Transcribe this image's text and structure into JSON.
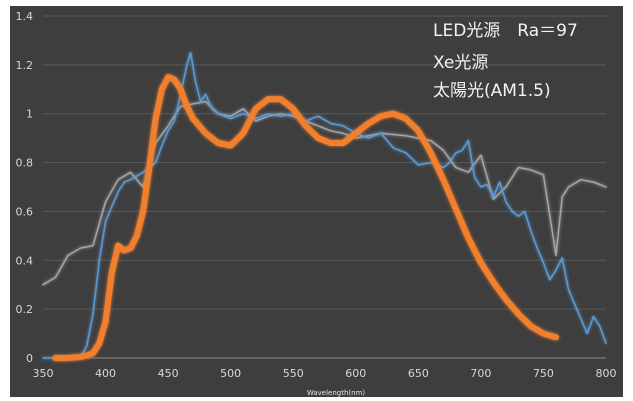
{
  "chart_data": {
    "type": "line",
    "title": "",
    "xlabel": "Wavelength(nm)",
    "ylabel": "",
    "xlim": [
      350,
      800
    ],
    "ylim": [
      0,
      1.4
    ],
    "x_ticks": [
      "350",
      "400",
      "450",
      "500",
      "550",
      "600",
      "650",
      "700",
      "750",
      "800"
    ],
    "y_ticks": [
      "0",
      "0.2",
      "0.4",
      "0.6",
      "0.8",
      "1",
      "1.2",
      "1.4"
    ],
    "grid": "horizontal",
    "legend_position": "top-right",
    "series": [
      {
        "name": "LED光源　Ra＝97",
        "color": "#f07f2e",
        "points": [
          [
            360,
            0
          ],
          [
            370,
            0
          ],
          [
            380,
            0.005
          ],
          [
            385,
            0.01
          ],
          [
            390,
            0.02
          ],
          [
            395,
            0.06
          ],
          [
            400,
            0.15
          ],
          [
            405,
            0.35
          ],
          [
            410,
            0.46
          ],
          [
            415,
            0.44
          ],
          [
            420,
            0.45
          ],
          [
            425,
            0.5
          ],
          [
            430,
            0.6
          ],
          [
            435,
            0.78
          ],
          [
            440,
            0.98
          ],
          [
            445,
            1.1
          ],
          [
            450,
            1.15
          ],
          [
            455,
            1.14
          ],
          [
            460,
            1.1
          ],
          [
            465,
            1.03
          ],
          [
            470,
            0.98
          ],
          [
            475,
            0.95
          ],
          [
            480,
            0.92
          ],
          [
            490,
            0.88
          ],
          [
            500,
            0.87
          ],
          [
            510,
            0.92
          ],
          [
            520,
            1.02
          ],
          [
            530,
            1.06
          ],
          [
            540,
            1.06
          ],
          [
            550,
            1.02
          ],
          [
            560,
            0.95
          ],
          [
            570,
            0.9
          ],
          [
            580,
            0.88
          ],
          [
            590,
            0.88
          ],
          [
            600,
            0.92
          ],
          [
            610,
            0.96
          ],
          [
            620,
            0.99
          ],
          [
            630,
            1.0
          ],
          [
            640,
            0.98
          ],
          [
            650,
            0.93
          ],
          [
            660,
            0.84
          ],
          [
            670,
            0.73
          ],
          [
            680,
            0.61
          ],
          [
            690,
            0.49
          ],
          [
            700,
            0.39
          ],
          [
            710,
            0.31
          ],
          [
            720,
            0.24
          ],
          [
            730,
            0.18
          ],
          [
            740,
            0.13
          ],
          [
            750,
            0.1
          ],
          [
            760,
            0.085
          ]
        ]
      },
      {
        "name": "Xe光源",
        "color": "#5b9bd5",
        "points": [
          [
            350,
            0
          ],
          [
            360,
            0
          ],
          [
            370,
            0
          ],
          [
            380,
            0
          ],
          [
            385,
            0.05
          ],
          [
            390,
            0.18
          ],
          [
            395,
            0.4
          ],
          [
            400,
            0.56
          ],
          [
            405,
            0.62
          ],
          [
            410,
            0.68
          ],
          [
            415,
            0.72
          ],
          [
            420,
            0.73
          ],
          [
            430,
            0.76
          ],
          [
            440,
            0.8
          ],
          [
            445,
            0.87
          ],
          [
            450,
            0.93
          ],
          [
            455,
            0.97
          ],
          [
            460,
            1.08
          ],
          [
            465,
            1.2
          ],
          [
            468,
            1.25
          ],
          [
            472,
            1.13
          ],
          [
            476,
            1.05
          ],
          [
            480,
            1.08
          ],
          [
            485,
            1.02
          ],
          [
            490,
            1.0
          ],
          [
            500,
            0.98
          ],
          [
            510,
            1.0
          ],
          [
            520,
            0.98
          ],
          [
            530,
            1.0
          ],
          [
            540,
            0.99
          ],
          [
            550,
            1.0
          ],
          [
            560,
            0.97
          ],
          [
            570,
            0.99
          ],
          [
            580,
            0.96
          ],
          [
            590,
            0.95
          ],
          [
            600,
            0.92
          ],
          [
            610,
            0.9
          ],
          [
            620,
            0.92
          ],
          [
            630,
            0.86
          ],
          [
            640,
            0.84
          ],
          [
            650,
            0.79
          ],
          [
            660,
            0.8
          ],
          [
            670,
            0.78
          ],
          [
            675,
            0.8
          ],
          [
            680,
            0.84
          ],
          [
            685,
            0.85
          ],
          [
            690,
            0.89
          ],
          [
            695,
            0.74
          ],
          [
            700,
            0.7
          ],
          [
            705,
            0.71
          ],
          [
            710,
            0.66
          ],
          [
            715,
            0.72
          ],
          [
            720,
            0.64
          ],
          [
            725,
            0.6
          ],
          [
            730,
            0.58
          ],
          [
            735,
            0.6
          ],
          [
            740,
            0.52
          ],
          [
            745,
            0.45
          ],
          [
            750,
            0.39
          ],
          [
            755,
            0.32
          ],
          [
            760,
            0.36
          ],
          [
            765,
            0.41
          ],
          [
            770,
            0.28
          ],
          [
            775,
            0.22
          ],
          [
            780,
            0.16
          ],
          [
            785,
            0.1
          ],
          [
            790,
            0.17
          ],
          [
            795,
            0.13
          ],
          [
            800,
            0.06
          ]
        ]
      },
      {
        "name": "太陽光(AM1.5)",
        "color": "#a5a5a5",
        "points": [
          [
            350,
            0.3
          ],
          [
            360,
            0.33
          ],
          [
            370,
            0.42
          ],
          [
            380,
            0.45
          ],
          [
            390,
            0.46
          ],
          [
            400,
            0.64
          ],
          [
            410,
            0.73
          ],
          [
            420,
            0.76
          ],
          [
            430,
            0.7
          ],
          [
            440,
            0.88
          ],
          [
            450,
            0.95
          ],
          [
            460,
            1.03
          ],
          [
            470,
            1.04
          ],
          [
            480,
            1.05
          ],
          [
            490,
            1.0
          ],
          [
            500,
            0.99
          ],
          [
            510,
            1.02
          ],
          [
            520,
            0.97
          ],
          [
            530,
            0.99
          ],
          [
            540,
            1.0
          ],
          [
            550,
            0.99
          ],
          [
            560,
            0.97
          ],
          [
            570,
            0.95
          ],
          [
            580,
            0.93
          ],
          [
            590,
            0.92
          ],
          [
            600,
            0.9
          ],
          [
            620,
            0.92
          ],
          [
            640,
            0.91
          ],
          [
            660,
            0.89
          ],
          [
            670,
            0.85
          ],
          [
            680,
            0.78
          ],
          [
            690,
            0.76
          ],
          [
            700,
            0.83
          ],
          [
            710,
            0.65
          ],
          [
            720,
            0.7
          ],
          [
            730,
            0.78
          ],
          [
            740,
            0.77
          ],
          [
            750,
            0.75
          ],
          [
            760,
            0.42
          ],
          [
            765,
            0.66
          ],
          [
            770,
            0.7
          ],
          [
            780,
            0.73
          ],
          [
            790,
            0.72
          ],
          [
            800,
            0.7
          ]
        ]
      }
    ]
  }
}
